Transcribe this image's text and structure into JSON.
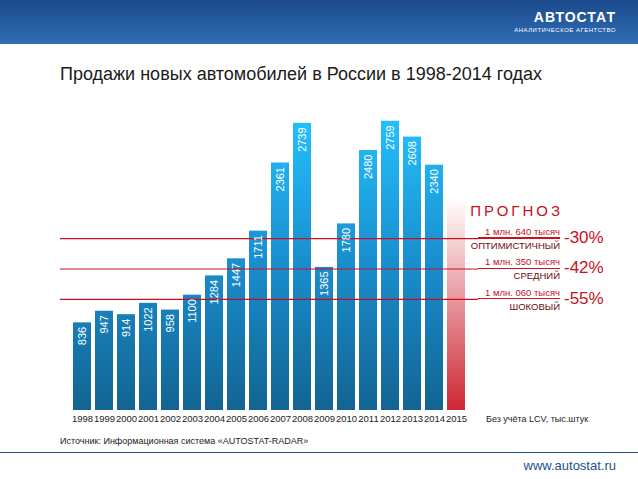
{
  "chart_data": {
    "type": "bar",
    "title": "Продажи новых автомобилей в России в 1998-2014 годах",
    "categories": [
      "1998",
      "1999",
      "2000",
      "2001",
      "2002",
      "2003",
      "2004",
      "2005",
      "2006",
      "2007",
      "2008",
      "2009",
      "2010",
      "2011",
      "2012",
      "2013",
      "2014",
      "2015"
    ],
    "values": [
      836,
      947,
      914,
      1022,
      958,
      1100,
      1284,
      1447,
      1711,
      2361,
      2739,
      1365,
      1780,
      2480,
      2759,
      2608,
      2340,
      null
    ],
    "color": "#1a8fd0",
    "ylim": [
      0,
      2900
    ],
    "tick_labels": "x",
    "data_labels": true,
    "note": "Без учёта LCV, тыс.штук",
    "source": "Источник: Информационная система «AUTOSTAT-RADAR»",
    "forecast": {
      "title": "ПРОГНОЗ",
      "color": "#c8101e",
      "scenarios": [
        {
          "value": 1640,
          "amount": "1 млн. 640 тысяч",
          "name": "ОПТИМИСТИЧНЫЙ",
          "change": "-30%"
        },
        {
          "value": 1350,
          "amount": "1 млн. 350 тысяч",
          "name": "СРЕДНИЙ",
          "change": "-42%"
        },
        {
          "value": 1060,
          "amount": "1 млн. 060 тысяч",
          "name": "ШОКОВЫЙ",
          "change": "-55%"
        }
      ]
    }
  },
  "header": {
    "logo": "АВТОСТАТ",
    "tagline": "АНАЛИТИЧЕСКОЕ АГЕНТСТВО"
  },
  "footer": {
    "url": "www.autostat.ru"
  }
}
